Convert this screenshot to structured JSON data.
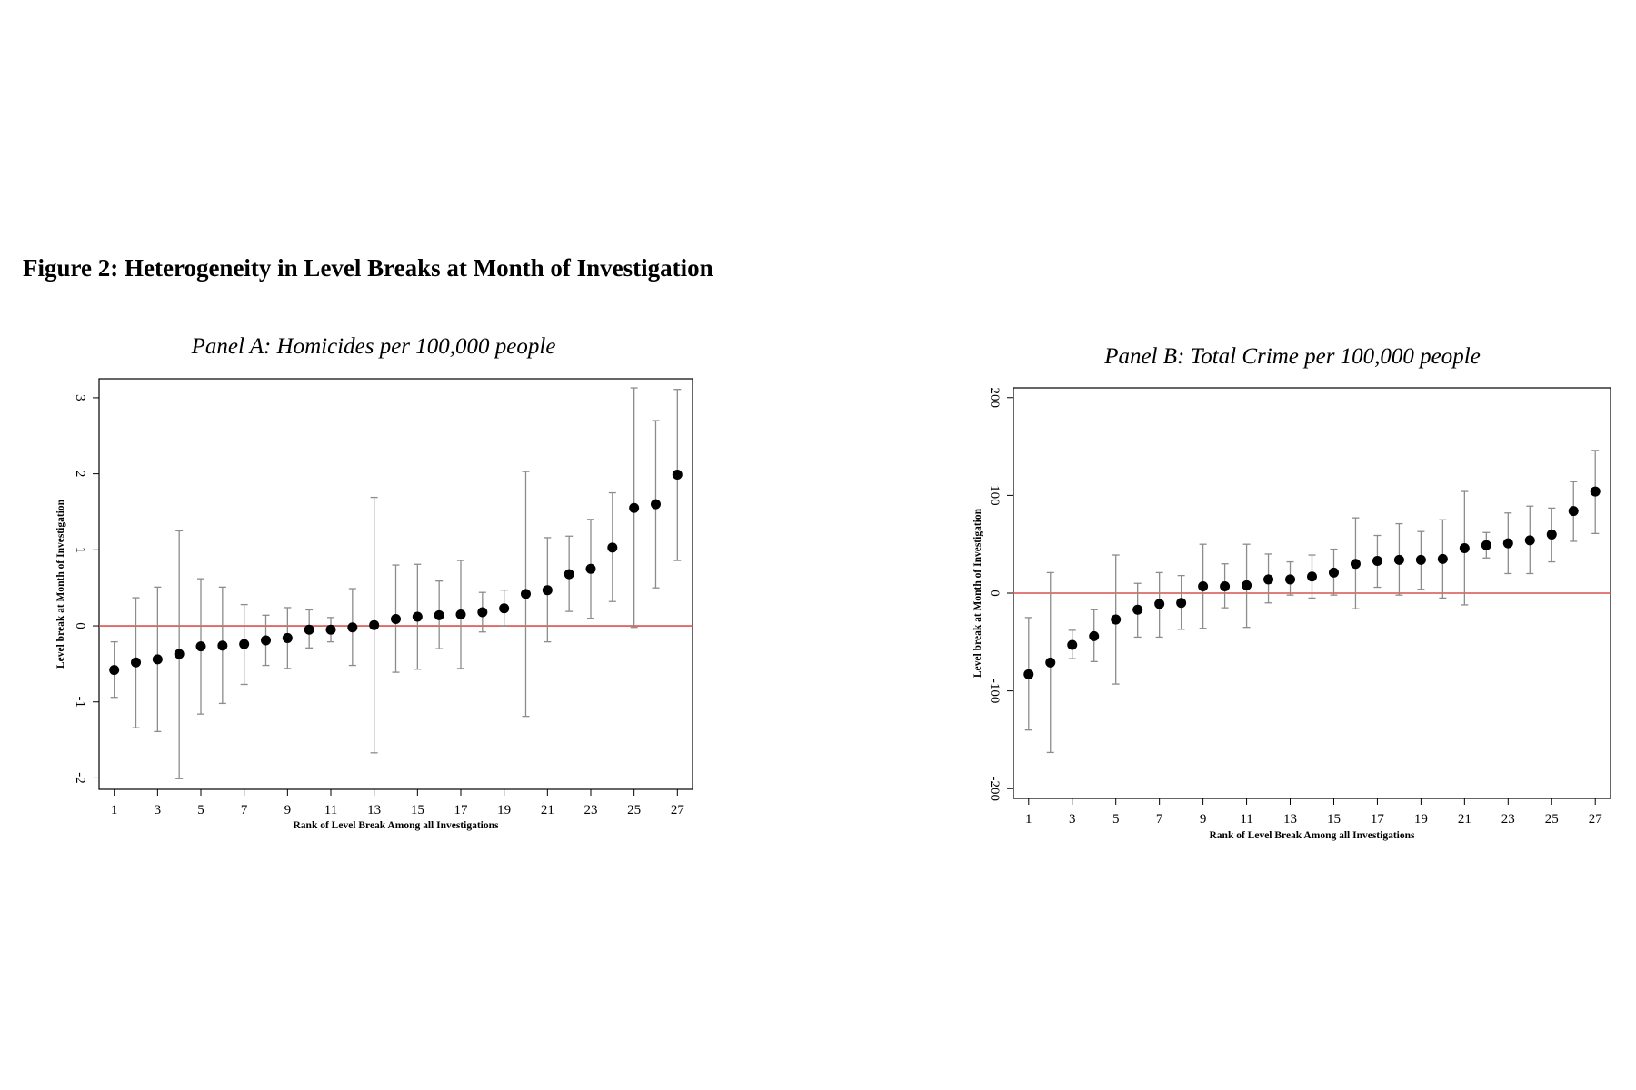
{
  "figure": {
    "title": "Figure 2: Heterogeneity in Level Breaks at Month of Investigation"
  },
  "colors": {
    "zero_line": "#d9534f",
    "points": "#000000",
    "error_bars": "#8c8c8c",
    "frame": "#000000"
  },
  "chart_data": [
    {
      "type": "scatter",
      "title": "Panel A: Homicides per 100,000 people",
      "xlabel": "Rank of Level Break Among all Investigations",
      "ylabel": "Level break at Month of Investigation",
      "xlim": [
        0.3,
        27.7
      ],
      "ylim": [
        -2.15,
        3.25
      ],
      "xticks": [
        1,
        3,
        5,
        7,
        9,
        11,
        13,
        15,
        17,
        19,
        21,
        23,
        25,
        27
      ],
      "yticks": [
        -2,
        -1,
        0,
        1,
        2,
        3
      ],
      "reference_line": 0,
      "grid": false,
      "x": [
        1,
        2,
        3,
        4,
        5,
        6,
        7,
        8,
        9,
        10,
        11,
        12,
        13,
        14,
        15,
        16,
        17,
        18,
        19,
        20,
        21,
        22,
        23,
        24,
        25,
        26,
        27
      ],
      "y": [
        -0.58,
        -0.48,
        -0.44,
        -0.37,
        -0.27,
        -0.26,
        -0.24,
        -0.19,
        -0.16,
        -0.05,
        -0.05,
        -0.02,
        0.01,
        0.09,
        0.12,
        0.14,
        0.15,
        0.18,
        0.23,
        0.42,
        0.47,
        0.68,
        0.75,
        1.03,
        1.55,
        1.6,
        1.99
      ],
      "ci_low": [
        -0.94,
        -1.34,
        -1.39,
        -2.01,
        -1.16,
        -1.02,
        -0.77,
        -0.52,
        -0.56,
        -0.29,
        -0.21,
        -0.52,
        -1.67,
        -0.61,
        -0.57,
        -0.3,
        -0.56,
        -0.08,
        0.0,
        -1.19,
        -0.21,
        0.19,
        0.1,
        0.32,
        -0.02,
        0.5,
        0.86
      ],
      "ci_high": [
        -0.21,
        0.37,
        0.51,
        1.25,
        0.62,
        0.51,
        0.28,
        0.14,
        0.24,
        0.21,
        0.11,
        0.49,
        1.69,
        0.8,
        0.81,
        0.59,
        0.86,
        0.44,
        0.47,
        2.03,
        1.16,
        1.18,
        1.4,
        1.75,
        3.13,
        2.7,
        3.11
      ]
    },
    {
      "type": "scatter",
      "title": "Panel B: Total Crime per 100,000 people",
      "xlabel": "Rank of Level Break Among all Investigations",
      "ylabel": "Level break at Month of Investigation",
      "xlim": [
        0.3,
        27.7
      ],
      "ylim": [
        -210,
        210
      ],
      "xticks": [
        1,
        3,
        5,
        7,
        9,
        11,
        13,
        15,
        17,
        19,
        21,
        23,
        25,
        27
      ],
      "yticks": [
        -200,
        -100,
        0,
        100,
        200
      ],
      "reference_line": 0,
      "grid": false,
      "x": [
        1,
        2,
        3,
        4,
        5,
        6,
        7,
        8,
        9,
        10,
        11,
        12,
        13,
        14,
        15,
        16,
        17,
        18,
        19,
        20,
        21,
        22,
        23,
        24,
        25,
        26,
        27
      ],
      "y": [
        -83,
        -71,
        -53,
        -44,
        -27,
        -17,
        -11,
        -10,
        7,
        7,
        8,
        14,
        14,
        17,
        21,
        30,
        33,
        34,
        34,
        35,
        46,
        49,
        51,
        54,
        60,
        84,
        104
      ],
      "ci_low": [
        -140,
        -163,
        -67,
        -70,
        -93,
        -45,
        -45,
        -37,
        -36,
        -15,
        -35,
        -10,
        -2,
        -5,
        -2,
        -16,
        6,
        -2,
        4,
        -5,
        -12,
        36,
        20,
        20,
        32,
        53,
        61
      ],
      "ci_high": [
        -25,
        21,
        -38,
        -17,
        39,
        10,
        21,
        18,
        50,
        30,
        50,
        40,
        32,
        39,
        45,
        77,
        59,
        71,
        63,
        75,
        104,
        62,
        82,
        89,
        87,
        114,
        146
      ]
    }
  ]
}
